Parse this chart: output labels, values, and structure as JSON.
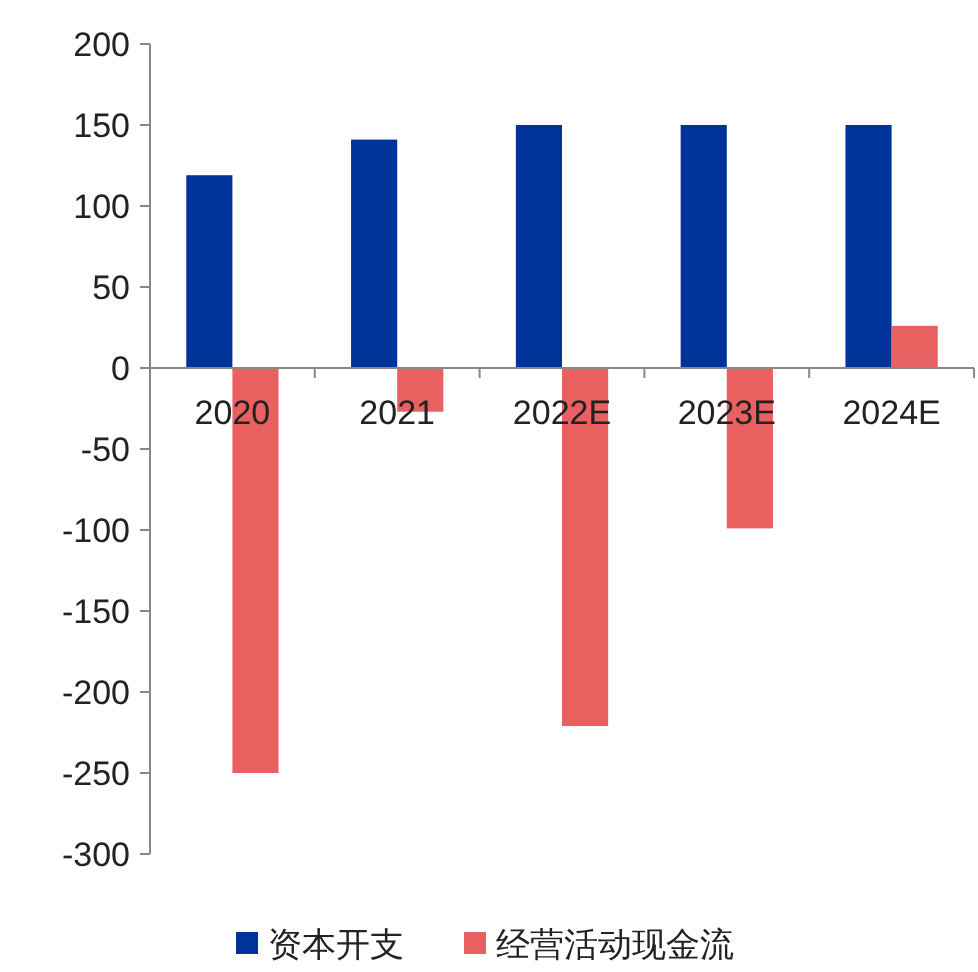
{
  "chart_data": {
    "type": "bar",
    "categories": [
      "2020",
      "2021",
      "2022E",
      "2023E",
      "2024E"
    ],
    "series": [
      {
        "name": "资本开支",
        "color": "#003399",
        "values": [
          119,
          141,
          150,
          150,
          150
        ]
      },
      {
        "name": "经营活动现金流",
        "color": "#e86060",
        "values": [
          -250,
          -27,
          -221,
          -99,
          26
        ]
      }
    ],
    "ylim": [
      -300,
      200
    ],
    "yticks": [
      -300,
      -250,
      -200,
      -150,
      -100,
      -50,
      0,
      50,
      100,
      150,
      200
    ],
    "grid": false,
    "legend": "bottom"
  }
}
